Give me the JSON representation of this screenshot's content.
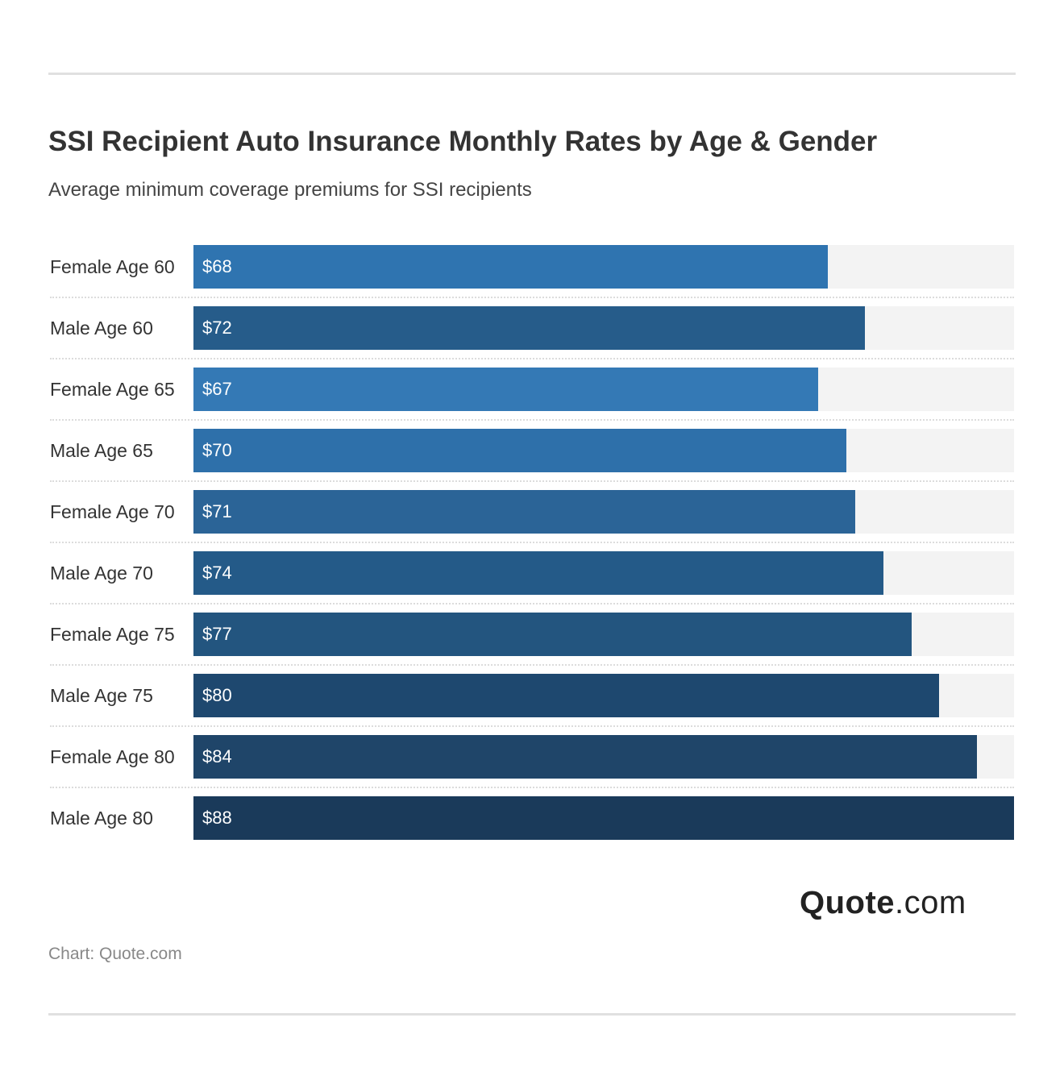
{
  "title": "SSI Recipient Auto Insurance Monthly Rates by Age & Gender",
  "subtitle": "Average minimum coverage premiums for SSI recipients",
  "source": "Chart: Quote.com",
  "logo": {
    "bold": "Quote",
    "light": ".com"
  },
  "chart_data": {
    "type": "bar",
    "orientation": "horizontal",
    "title": "SSI Recipient Auto Insurance Monthly Rates by Age & Gender",
    "subtitle": "Average minimum coverage premiums for SSI recipients",
    "categories": [
      "Female Age 60",
      "Male Age 60",
      "Female Age 65",
      "Male Age 65",
      "Female Age 70",
      "Male Age 70",
      "Female Age 75",
      "Male Age 75",
      "Female Age 80",
      "Male Age 80"
    ],
    "values": [
      68,
      72,
      67,
      70,
      71,
      74,
      77,
      80,
      84,
      88
    ],
    "labels": [
      "$68",
      "$72",
      "$67",
      "$70",
      "$71",
      "$74",
      "$77",
      "$80",
      "$84",
      "$88"
    ],
    "colors": [
      "#2f74b0",
      "#265c8a",
      "#3479b5",
      "#2e70aa",
      "#2b6497",
      "#245a88",
      "#23557f",
      "#1e486f",
      "#1f4569",
      "#1a3a5a"
    ],
    "xlim": [
      0,
      88
    ],
    "grid": false,
    "legend": "none"
  }
}
